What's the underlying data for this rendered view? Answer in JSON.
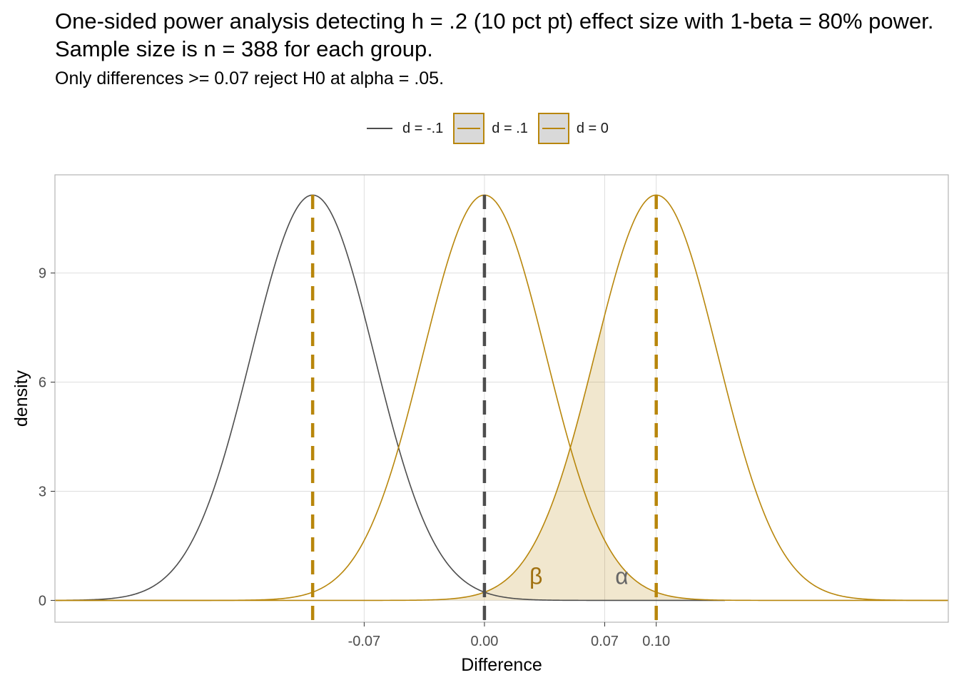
{
  "title": "One-sided power analysis detecting h = .2 (10 pct pt) effect size with 1-beta = 80% power. Sample size is n = 388 for each group.",
  "subtitle": "Only differences >= 0.07 reject H0 at alpha = .05.",
  "legend": [
    {
      "label": "d = -.1",
      "style": "line",
      "color": "#4d4d4d"
    },
    {
      "label": "d = .1",
      "style": "filled",
      "color": "#b8860b"
    },
    {
      "label": "d = 0",
      "style": "filled",
      "color": "#b8860b"
    }
  ],
  "chart_data": {
    "type": "line",
    "title": "One-sided power analysis detecting h = .2 (10 pct pt) effect size with 1-beta = 80% power. Sample size is n = 388 for each group.",
    "subtitle": "Only differences >= 0.07 reject H0 at alpha = .05.",
    "xlabel": "Difference",
    "ylabel": "density",
    "xlim": [
      -0.25,
      0.27
    ],
    "ylim": [
      -0.6,
      11.7
    ],
    "x_ticks": [
      -0.07,
      0.0,
      0.07,
      0.1
    ],
    "x_tick_labels": [
      "-0.07",
      "0.00",
      "0.07",
      "0.10"
    ],
    "y_ticks": [
      0,
      3,
      6,
      9
    ],
    "y_tick_labels": [
      "0",
      "3",
      "6",
      "9"
    ],
    "grid": true,
    "legend_position": "top",
    "series": [
      {
        "name": "d = -.1",
        "mean": -0.1,
        "sd": 0.0358,
        "x_range": [
          -0.25,
          0.14
        ],
        "color": "#4d4d4d"
      },
      {
        "name": "d = 0",
        "mean": 0.0,
        "sd": 0.0358,
        "x_range": [
          -0.25,
          0.27
        ],
        "color": "#b8860b"
      },
      {
        "name": "d = .1",
        "mean": 0.1,
        "sd": 0.0358,
        "x_range": [
          -0.25,
          0.27
        ],
        "color": "#b8860b"
      }
    ],
    "critical_value": 0.07,
    "shaded_regions": [
      {
        "series": "d = .1",
        "from": -0.05,
        "to": 0.07,
        "color": "#b8860b",
        "opacity": 0.2
      },
      {
        "series": "d = 0",
        "from": 0.07,
        "to": 0.27,
        "color": "#b8860b",
        "opacity": 0.2
      }
    ],
    "vlines": [
      {
        "x": -0.1,
        "color": "#b8860b",
        "linetype": "dashed"
      },
      {
        "x": 0.0,
        "color": "#4d4d4d",
        "linetype": "dashed"
      },
      {
        "x": 0.1,
        "color": "#b8860b",
        "linetype": "dashed"
      }
    ],
    "annotations": [
      {
        "text": "β",
        "x": 0.03,
        "y": 0.45,
        "color": "#a0700f"
      },
      {
        "text": "α",
        "x": 0.08,
        "y": 0.45,
        "color": "#666666"
      }
    ]
  }
}
